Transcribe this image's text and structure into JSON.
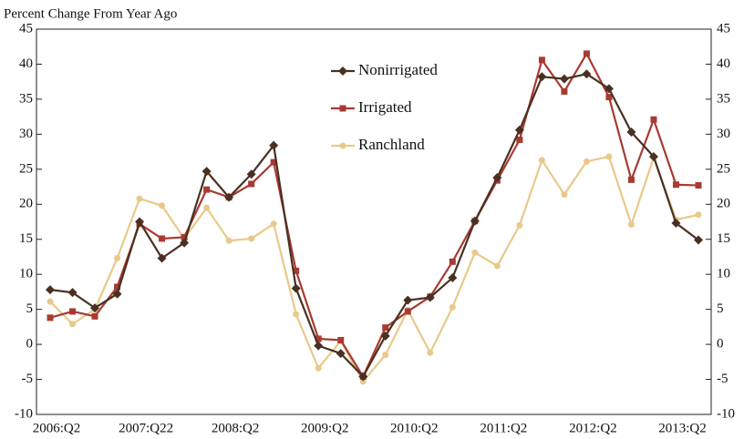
{
  "chart_data": {
    "type": "line",
    "title": "Percent Change From Year Ago",
    "categories": [
      "2006:Q2",
      null,
      null,
      null,
      "2007:Q22",
      null,
      null,
      null,
      "2008:Q2",
      null,
      null,
      null,
      "2009:Q2",
      null,
      null,
      null,
      "2010:Q2",
      null,
      null,
      null,
      "2011:Q2",
      null,
      null,
      null,
      "2012:Q2",
      null,
      null,
      null,
      "2013:Q2",
      null
    ],
    "series": [
      {
        "name": "Nonirrigated",
        "color": "#4a3020",
        "marker": "diamond",
        "values": [
          7.8,
          7.4,
          5.2,
          7.2,
          17.5,
          12.3,
          14.5,
          24.7,
          21.0,
          24.3,
          28.4,
          8.0,
          -0.2,
          -1.3,
          -4.6,
          1.2,
          6.3,
          6.7,
          9.5,
          17.6,
          23.8,
          30.6,
          38.2,
          37.9,
          38.6,
          36.5,
          30.3,
          26.8,
          17.3,
          14.9
        ]
      },
      {
        "name": "Irrigated",
        "color": "#a83a32",
        "marker": "square",
        "values": [
          3.8,
          4.7,
          4.0,
          8.2,
          17.2,
          15.1,
          15.3,
          22.1,
          21.0,
          22.9,
          26.0,
          10.5,
          0.8,
          0.6,
          -4.6,
          2.4,
          4.7,
          6.8,
          11.8,
          17.6,
          23.4,
          29.2,
          40.6,
          36.1,
          41.5,
          35.3,
          23.5,
          32.1,
          22.8,
          22.7
        ]
      },
      {
        "name": "Ranchland",
        "color": "#e8c98a",
        "marker": "circle",
        "values": [
          6.1,
          2.9,
          5.0,
          12.3,
          20.8,
          19.8,
          15.1,
          19.5,
          14.8,
          15.1,
          17.2,
          4.3,
          -3.4,
          0.5,
          -5.3,
          -1.5,
          4.9,
          -1.2,
          5.3,
          13.1,
          11.2,
          17.0,
          26.3,
          21.4,
          26.1,
          26.8,
          17.1,
          26.7,
          17.8,
          18.5
        ]
      }
    ],
    "ylim": [
      -10,
      45
    ],
    "yticks": [
      -10,
      -5,
      0,
      5,
      10,
      15,
      20,
      25,
      30,
      35,
      40,
      45
    ],
    "y2lim": [
      -10,
      45
    ],
    "y2ticks": [
      -10,
      -5,
      0,
      5,
      10,
      15,
      20,
      25,
      30,
      35,
      40,
      45
    ]
  }
}
